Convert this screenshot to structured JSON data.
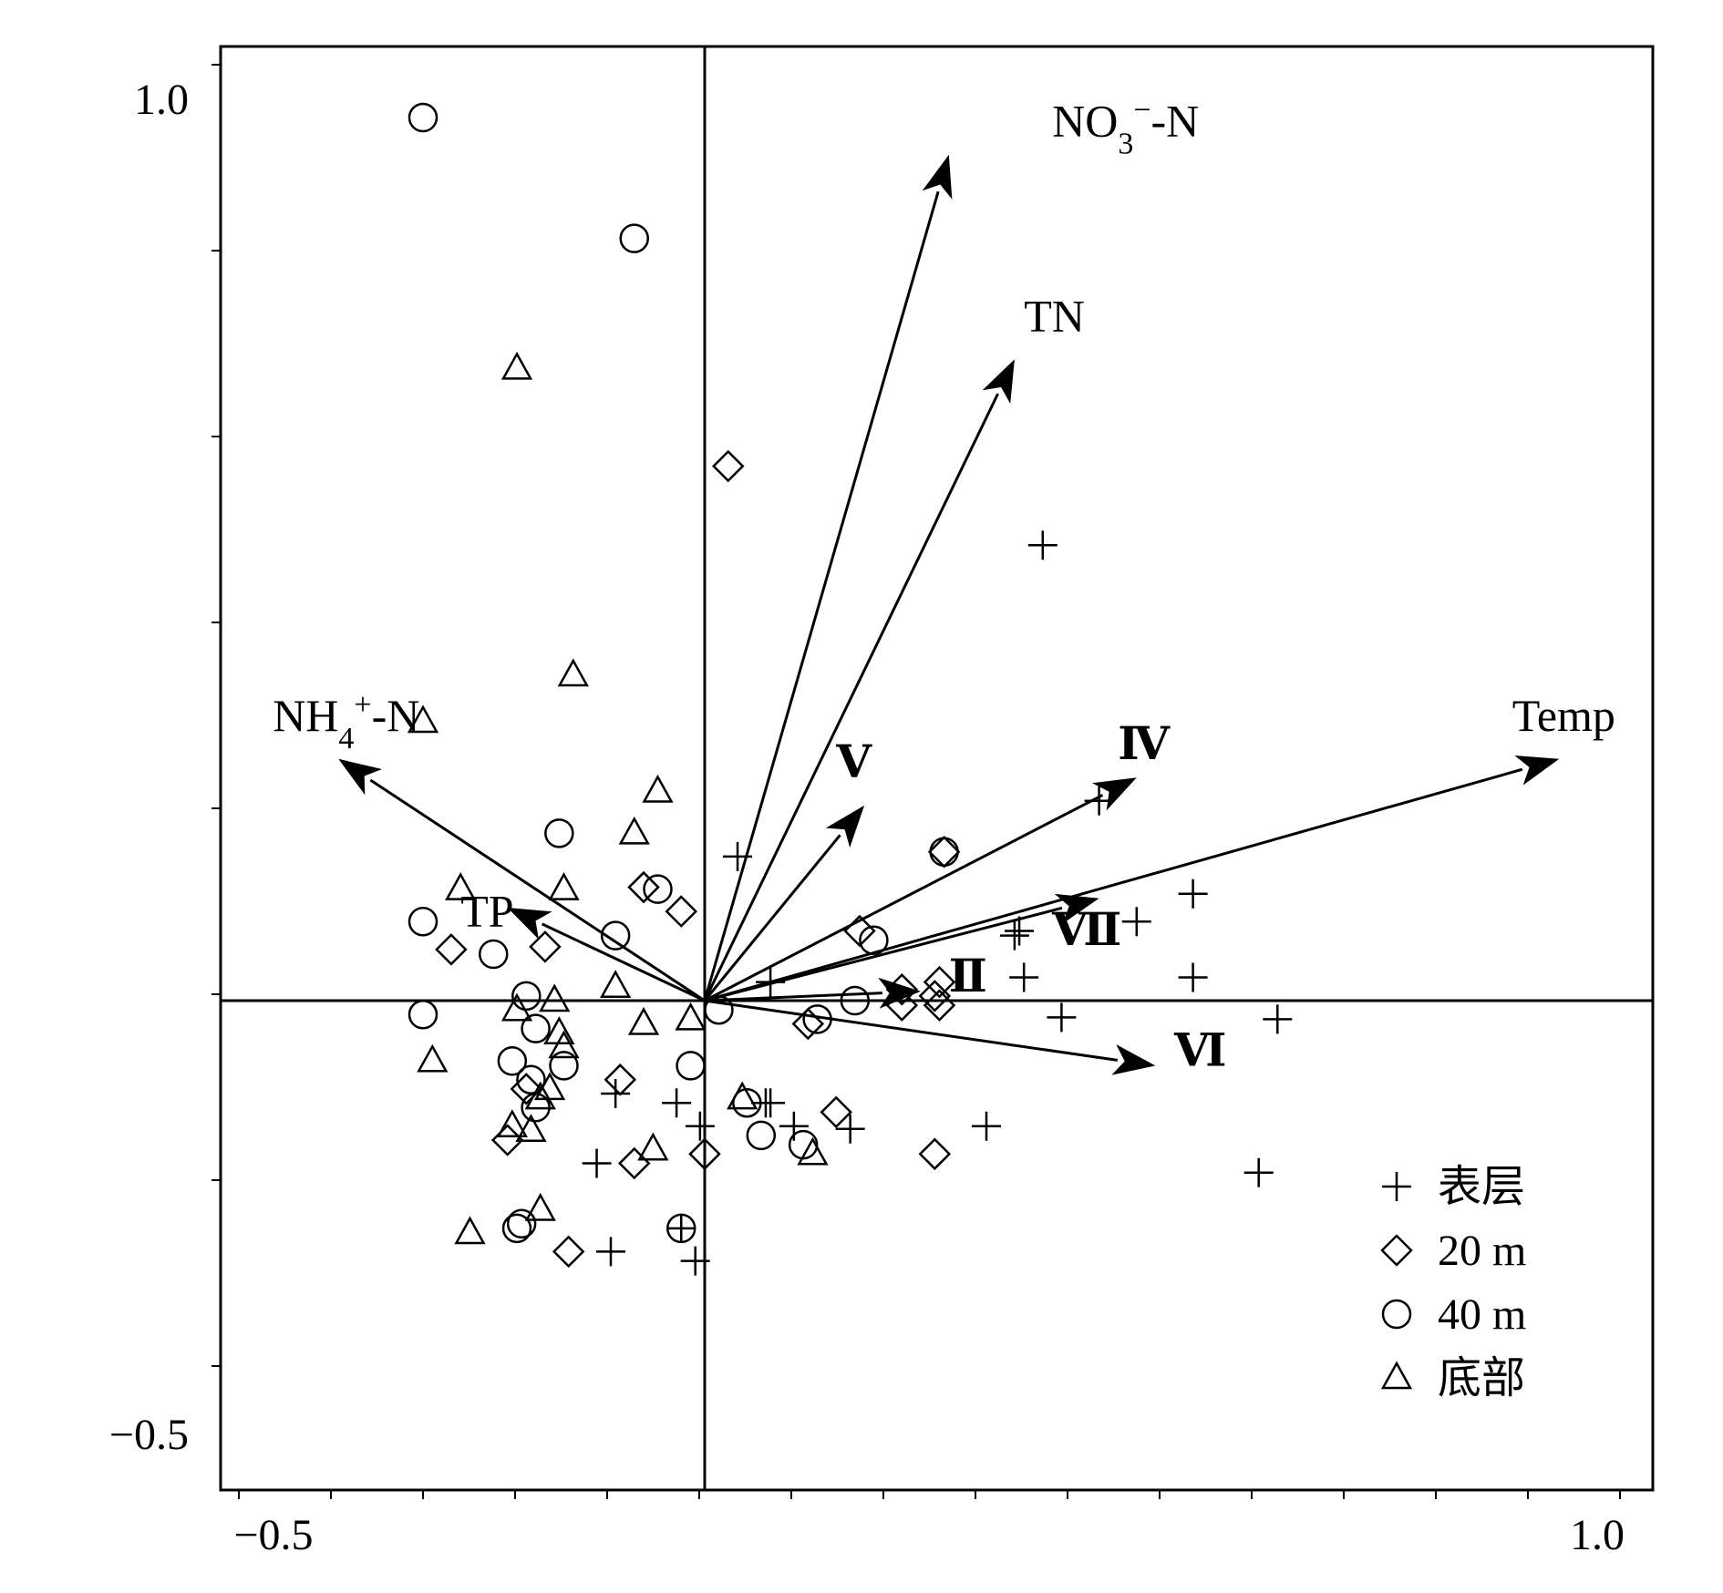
{
  "chart_data": {
    "type": "scatter",
    "title": "",
    "xlabel": "",
    "ylabel": "",
    "xlim": [
      -0.5,
      1.0
    ],
    "ylim": [
      -0.5,
      1.0
    ],
    "x_tick_labels": [
      "−0.5",
      "1.0"
    ],
    "y_tick_labels": [
      "1.0",
      "−0.5"
    ],
    "grid": false,
    "axis_lines_at_zero": true,
    "legend_position": "bottom-right",
    "legend": [
      {
        "marker": "plus",
        "label": "表层"
      },
      {
        "marker": "diamond",
        "label": "20 m"
      },
      {
        "marker": "circle",
        "label": "40 m"
      },
      {
        "marker": "triangle",
        "label": "底部"
      }
    ],
    "arrows": [
      {
        "label_parts": [
          {
            "t": "NO"
          },
          {
            "t": "3",
            "sub": true
          },
          {
            "t": "−",
            "sup": true
          },
          {
            "t": "-N"
          }
        ],
        "x": 0.26,
        "y": 0.91,
        "label_x": 0.37,
        "label_y": 0.93,
        "kind": "env"
      },
      {
        "label_parts": [
          {
            "t": "TN"
          }
        ],
        "x": 0.33,
        "y": 0.69,
        "label_x": 0.34,
        "label_y": 0.72,
        "kind": "env"
      },
      {
        "label_parts": [
          {
            "t": "NH"
          },
          {
            "t": "4",
            "sub": true
          },
          {
            "t": "+",
            "sup": true
          },
          {
            "t": "-N"
          }
        ],
        "x": -0.39,
        "y": 0.26,
        "label_x": -0.46,
        "label_y": 0.29,
        "kind": "env"
      },
      {
        "label_parts": [
          {
            "t": "TP"
          }
        ],
        "x": -0.21,
        "y": 0.1,
        "label_x": -0.26,
        "label_y": 0.08,
        "kind": "env"
      },
      {
        "label_parts": [
          {
            "t": "Temp"
          }
        ],
        "x": 0.91,
        "y": 0.26,
        "label_x": 0.86,
        "label_y": 0.29,
        "kind": "env"
      },
      {
        "label_parts": [
          {
            "t": "Ⅳ"
          }
        ],
        "x": 0.46,
        "y": 0.24,
        "label_x": 0.44,
        "label_y": 0.26,
        "kind": "species"
      },
      {
        "label_parts": [
          {
            "t": "Ⅴ"
          }
        ],
        "x": 0.17,
        "y": 0.21,
        "label_x": 0.14,
        "label_y": 0.24,
        "kind": "species"
      },
      {
        "label_parts": [
          {
            "t": "Ⅶ"
          }
        ],
        "x": 0.42,
        "y": 0.11,
        "label_x": 0.37,
        "label_y": 0.06,
        "kind": "species"
      },
      {
        "label_parts": [
          {
            "t": "Ⅱ"
          }
        ],
        "x": 0.23,
        "y": 0.01,
        "label_x": 0.26,
        "label_y": 0.01,
        "kind": "species"
      },
      {
        "label_parts": [
          {
            "t": "Ⅵ"
          }
        ],
        "x": 0.48,
        "y": -0.07,
        "label_x": 0.5,
        "label_y": -0.07,
        "kind": "species"
      }
    ],
    "series": [
      {
        "marker": "plus",
        "points": [
          [
            0.36,
            0.49
          ],
          [
            0.035,
            0.155
          ],
          [
            0.42,
            0.215
          ],
          [
            0.52,
            0.115
          ],
          [
            0.46,
            0.085
          ],
          [
            0.335,
            0.075
          ],
          [
            0.34,
            0.025
          ],
          [
            0.52,
            0.025
          ],
          [
            0.38,
            -0.018
          ],
          [
            0.61,
            -0.02
          ],
          [
            0.07,
            0.02
          ],
          [
            -0.095,
            -0.1
          ],
          [
            -0.03,
            -0.11
          ],
          [
            0.065,
            -0.11
          ],
          [
            0.07,
            -0.11
          ],
          [
            -0.005,
            -0.135
          ],
          [
            0.095,
            -0.135
          ],
          [
            0.155,
            -0.138
          ],
          [
            0.3,
            -0.135
          ],
          [
            -0.115,
            -0.175
          ],
          [
            0.59,
            -0.185
          ],
          [
            -0.025,
            -0.245
          ],
          [
            -0.1,
            -0.27
          ],
          [
            -0.01,
            -0.28
          ],
          [
            0.33,
            0.07
          ]
        ]
      },
      {
        "marker": "diamond",
        "points": [
          [
            0.025,
            0.575
          ],
          [
            0.255,
            0.16
          ],
          [
            0.165,
            0.075
          ],
          [
            -0.065,
            0.122
          ],
          [
            -0.025,
            0.096
          ],
          [
            -0.27,
            0.055
          ],
          [
            -0.17,
            0.058
          ],
          [
            0.21,
            0.012
          ],
          [
            0.25,
            0.02
          ],
          [
            0.245,
            0.005
          ],
          [
            0.21,
            -0.005
          ],
          [
            0.25,
            -0.005
          ],
          [
            0.11,
            -0.025
          ],
          [
            -0.09,
            -0.085
          ],
          [
            -0.19,
            -0.095
          ],
          [
            -0.21,
            -0.15
          ],
          [
            0.14,
            -0.12
          ],
          [
            -0.075,
            -0.175
          ],
          [
            0.0,
            -0.165
          ],
          [
            0.245,
            -0.165
          ],
          [
            -0.145,
            -0.27
          ]
        ]
      },
      {
        "marker": "circle",
        "points": [
          [
            -0.3,
            0.95
          ],
          [
            -0.075,
            0.82
          ],
          [
            0.255,
            0.16
          ],
          [
            -0.155,
            0.18
          ],
          [
            -0.05,
            0.12
          ],
          [
            -0.095,
            0.07
          ],
          [
            -0.3,
            0.085
          ],
          [
            -0.225,
            0.05
          ],
          [
            0.18,
            0.065
          ],
          [
            -0.19,
            0.005
          ],
          [
            0.16,
            0.0
          ],
          [
            -0.3,
            -0.015
          ],
          [
            0.015,
            -0.01
          ],
          [
            0.12,
            -0.02
          ],
          [
            -0.18,
            -0.03
          ],
          [
            -0.15,
            -0.07
          ],
          [
            -0.205,
            -0.065
          ],
          [
            -0.185,
            -0.085
          ],
          [
            -0.015,
            -0.07
          ],
          [
            0.045,
            -0.11
          ],
          [
            0.06,
            -0.145
          ],
          [
            0.105,
            -0.155
          ],
          [
            -0.18,
            -0.115
          ],
          [
            -0.195,
            -0.24
          ],
          [
            -0.2,
            -0.245
          ],
          [
            -0.025,
            -0.245
          ]
        ]
      },
      {
        "marker": "triangle",
        "points": [
          [
            -0.2,
            0.68
          ],
          [
            -0.14,
            0.35
          ],
          [
            -0.3,
            0.3
          ],
          [
            -0.05,
            0.225
          ],
          [
            -0.075,
            0.18
          ],
          [
            -0.26,
            0.12
          ],
          [
            -0.15,
            0.12
          ],
          [
            -0.095,
            0.015
          ],
          [
            -0.16,
            0.0
          ],
          [
            -0.2,
            -0.01
          ],
          [
            -0.015,
            -0.02
          ],
          [
            -0.065,
            -0.025
          ],
          [
            -0.155,
            -0.035
          ],
          [
            -0.15,
            -0.05
          ],
          [
            -0.29,
            -0.065
          ],
          [
            -0.165,
            -0.095
          ],
          [
            -0.175,
            -0.105
          ],
          [
            -0.205,
            -0.135
          ],
          [
            -0.185,
            -0.14
          ],
          [
            -0.055,
            -0.16
          ],
          [
            0.115,
            -0.165
          ],
          [
            0.04,
            -0.105
          ],
          [
            -0.175,
            -0.225
          ],
          [
            -0.25,
            -0.25
          ]
        ]
      }
    ]
  }
}
